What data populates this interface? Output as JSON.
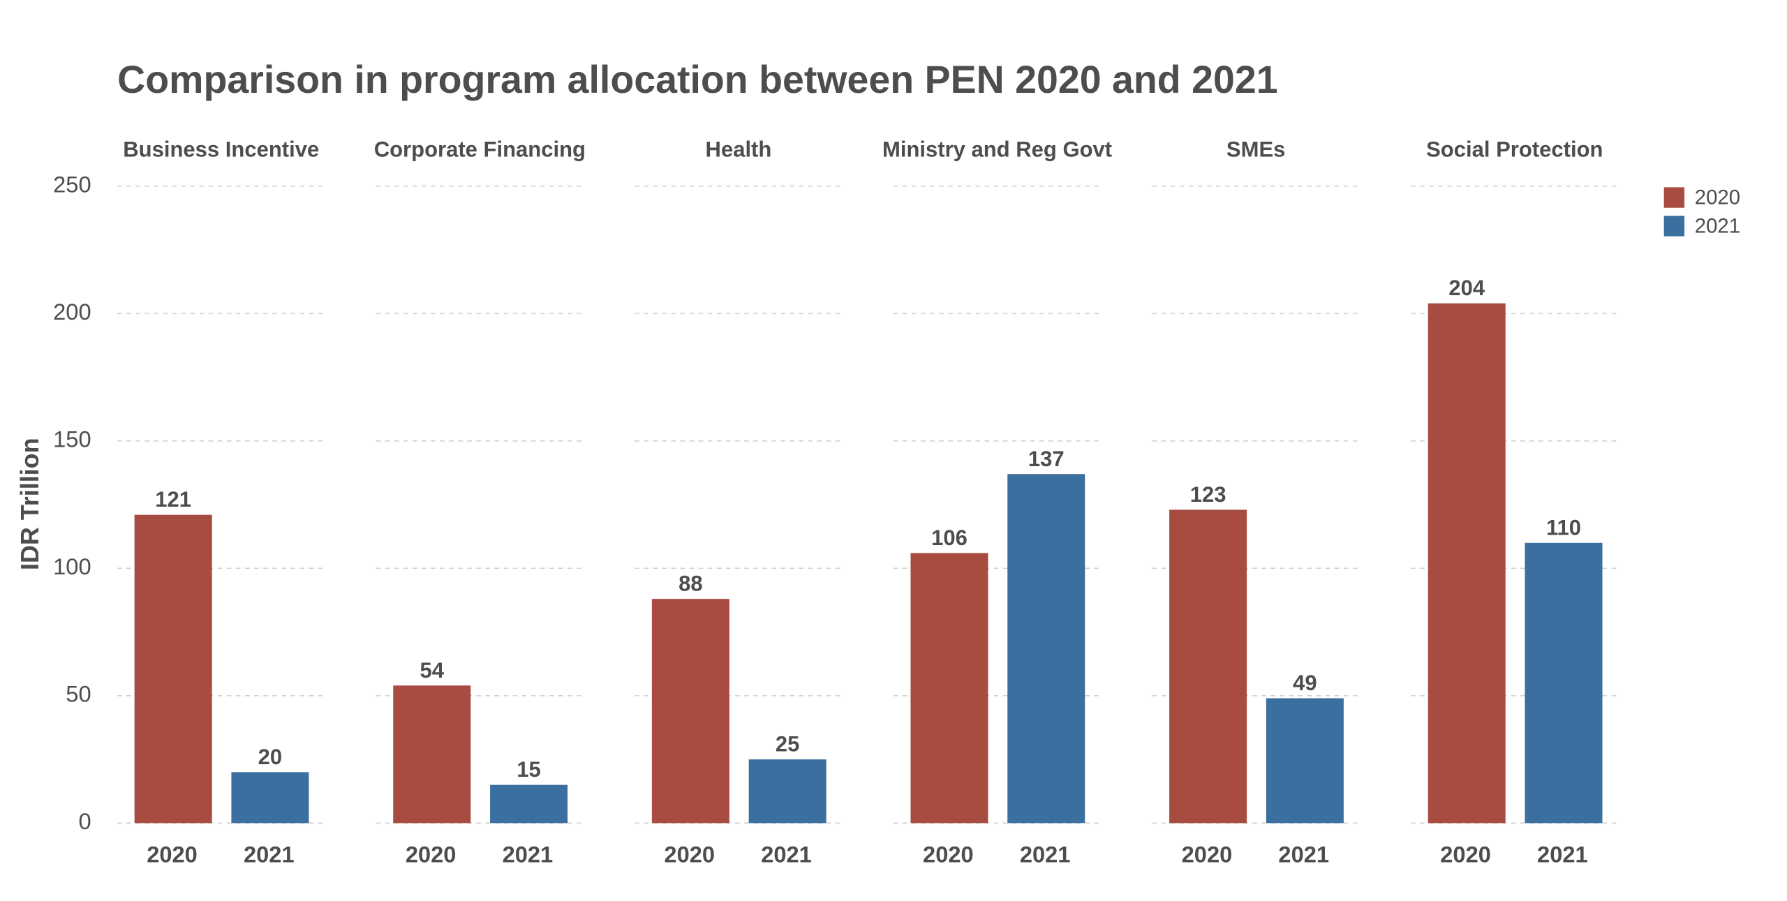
{
  "chart_data": {
    "type": "bar",
    "title": "Comparison in program allocation between PEN 2020 and 2021",
    "ylabel": "IDR Trillion",
    "categories": [
      "Business Incentive",
      "Corporate Financing",
      "Health",
      "Ministry and Reg Govt",
      "SMEs",
      "Social Protection"
    ],
    "series": [
      {
        "name": "2020",
        "color": "#a84c42",
        "values": [
          121,
          54,
          88,
          106,
          123,
          204
        ]
      },
      {
        "name": "2021",
        "color": "#3b6fa0",
        "values": [
          20,
          15,
          25,
          137,
          49,
          110
        ]
      }
    ],
    "ylim": [
      0,
      250
    ],
    "yticks": [
      0,
      50,
      100,
      150,
      200,
      250
    ],
    "grid": true,
    "legend": "top-right"
  }
}
